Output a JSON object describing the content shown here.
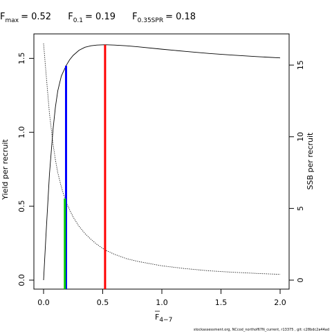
{
  "chart_data": {
    "type": "line",
    "title_parts": [
      {
        "symbol": "F",
        "subscript": "max",
        "equals": "= 0.52"
      },
      {
        "symbol": "F",
        "subscript": "0.1",
        "equals": "= 0.19"
      },
      {
        "symbol": "F",
        "subscript": "0.35SPR",
        "equals": "= 0.18"
      }
    ],
    "xlabel": {
      "symbol": "F",
      "subscript": "4−7"
    },
    "ylabel_left": "Yield per recruit",
    "ylabel_right": "SSB per recruit",
    "xlim": [
      0,
      2
    ],
    "ylim_left": [
      0,
      1.6
    ],
    "ylim_right": [
      0,
      16.5
    ],
    "x_ticks": [
      "0.0",
      "0.5",
      "1.0",
      "1.5",
      "2.0"
    ],
    "y_left_ticks": [
      "0.0",
      "0.5",
      "1.0",
      "1.5"
    ],
    "y_right_ticks": [
      "0",
      "5",
      "10",
      "15"
    ],
    "series": [
      {
        "axis": "left",
        "style": "solid",
        "x": [
          0,
          0.02,
          0.05,
          0.08,
          0.1,
          0.12,
          0.15,
          0.19,
          0.22,
          0.25,
          0.3,
          0.35,
          0.4,
          0.45,
          0.52,
          0.6,
          0.7,
          0.8,
          1.0,
          1.2,
          1.4,
          1.6,
          1.8,
          2.0
        ],
        "y": [
          0,
          0.3,
          0.72,
          1.02,
          1.17,
          1.28,
          1.38,
          1.45,
          1.49,
          1.52,
          1.555,
          1.575,
          1.585,
          1.59,
          1.592,
          1.59,
          1.585,
          1.578,
          1.562,
          1.547,
          1.533,
          1.522,
          1.512,
          1.503
        ]
      },
      {
        "axis": "right",
        "style": "dotted",
        "x": [
          0,
          0.02,
          0.05,
          0.08,
          0.1,
          0.12,
          0.15,
          0.18,
          0.2,
          0.25,
          0.3,
          0.35,
          0.4,
          0.45,
          0.52,
          0.6,
          0.7,
          0.8,
          1.0,
          1.2,
          1.4,
          1.6,
          1.8,
          2.0
        ],
        "y": [
          16.5,
          14.5,
          11.6,
          9.5,
          8.4,
          7.5,
          6.5,
          5.7,
          5.25,
          4.4,
          3.75,
          3.25,
          2.85,
          2.5,
          2.1,
          1.8,
          1.5,
          1.3,
          1.0,
          0.8,
          0.65,
          0.55,
          0.47,
          0.4
        ]
      }
    ],
    "reference_lines": [
      {
        "x": 0.52,
        "y_top": 1.592,
        "axis": "left",
        "color": "#ff0000"
      },
      {
        "x": 0.19,
        "y_top": 1.45,
        "axis": "left",
        "color": "#0000ff"
      },
      {
        "x": 0.18,
        "y_top": 5.7,
        "axis": "right",
        "color": "#00cc00"
      }
    ],
    "grid": false,
    "legend": "none"
  },
  "footer_text": "stockassessment.org,  NCcod_northof67N_current,  r13375 ,  git: c28bdc2a44ad"
}
